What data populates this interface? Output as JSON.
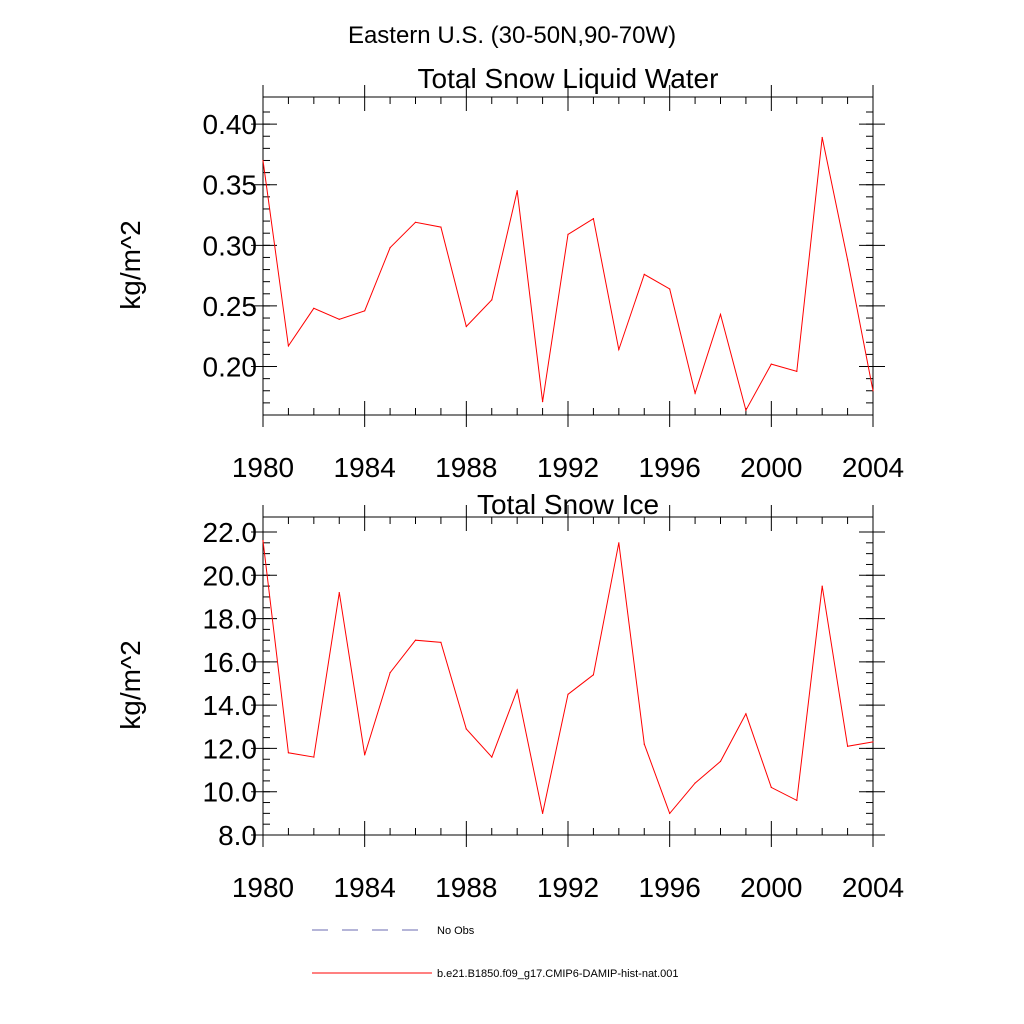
{
  "figure": {
    "main_title": "Eastern U.S. (30-50N,90-70W)",
    "legend": [
      {
        "label": "No Obs",
        "style": "dashed",
        "color": "#6b6bb0"
      },
      {
        "label": "b.e21.B1850.f09_g17.CMIP6-DAMIP-hist-nat.001",
        "style": "solid",
        "color": "#ff0000"
      }
    ]
  },
  "chart_data": [
    {
      "type": "line",
      "title": "Total Snow Liquid Water",
      "xlabel": "",
      "ylabel": "kg/m^2",
      "xlim": [
        1980,
        2004
      ],
      "ylim": [
        0.16,
        0.41
      ],
      "xticks": [
        1980,
        1984,
        1988,
        1992,
        1996,
        2000,
        2004
      ],
      "xtick_labels": [
        "1980",
        "1984",
        "1988",
        "1992",
        "1996",
        "2000",
        "2004"
      ],
      "yticks": [
        0.2,
        0.25,
        0.3,
        0.35,
        0.4
      ],
      "ytick_labels": [
        "0.20",
        "0.25",
        "0.30",
        "0.35",
        "0.40"
      ],
      "y_minor_step": 0.01,
      "grid": false,
      "x": [
        1980,
        1981,
        1982,
        1983,
        1984,
        1985,
        1986,
        1987,
        1988,
        1989,
        1990,
        1991,
        1992,
        1993,
        1994,
        1995,
        1996,
        1997,
        1998,
        1999,
        2000,
        2001,
        2002,
        2003,
        2004
      ],
      "series": [
        {
          "color": "#ff0000",
          "values": [
            0.37,
            0.217,
            0.248,
            0.239,
            0.246,
            0.298,
            0.319,
            0.315,
            0.233,
            0.255,
            0.345,
            0.171,
            0.309,
            0.322,
            0.214,
            0.276,
            0.264,
            0.178,
            0.243,
            0.164,
            0.202,
            0.196,
            0.389,
            0.288,
            0.18
          ]
        }
      ]
    },
    {
      "type": "line",
      "title": "Total Snow Ice",
      "xlabel": "",
      "ylabel": "kg/m^2",
      "xlim": [
        1980,
        2004
      ],
      "ylim": [
        8.0,
        22.0
      ],
      "xticks": [
        1980,
        1984,
        1988,
        1992,
        1996,
        2000,
        2004
      ],
      "xtick_labels": [
        "1980",
        "1984",
        "1988",
        "1992",
        "1996",
        "2000",
        "2004"
      ],
      "yticks": [
        8.0,
        10.0,
        12.0,
        14.0,
        16.0,
        18.0,
        20.0,
        22.0
      ],
      "ytick_labels": [
        "8.0",
        "10.0",
        "12.0",
        "14.0",
        "16.0",
        "18.0",
        "20.0",
        "22.0"
      ],
      "y_minor_step": 0.5,
      "grid": false,
      "x": [
        1980,
        1981,
        1982,
        1983,
        1984,
        1985,
        1986,
        1987,
        1988,
        1989,
        1990,
        1991,
        1992,
        1993,
        1994,
        1995,
        1996,
        1997,
        1998,
        1999,
        2000,
        2001,
        2002,
        2003,
        2004
      ],
      "series": [
        {
          "color": "#ff0000",
          "values": [
            21.6,
            11.8,
            11.6,
            19.2,
            11.7,
            15.5,
            17.0,
            16.9,
            12.9,
            11.6,
            14.7,
            9.0,
            14.5,
            15.4,
            21.5,
            12.2,
            9.0,
            10.4,
            11.4,
            13.6,
            10.2,
            9.6,
            19.5,
            12.1,
            12.3
          ]
        }
      ]
    }
  ]
}
